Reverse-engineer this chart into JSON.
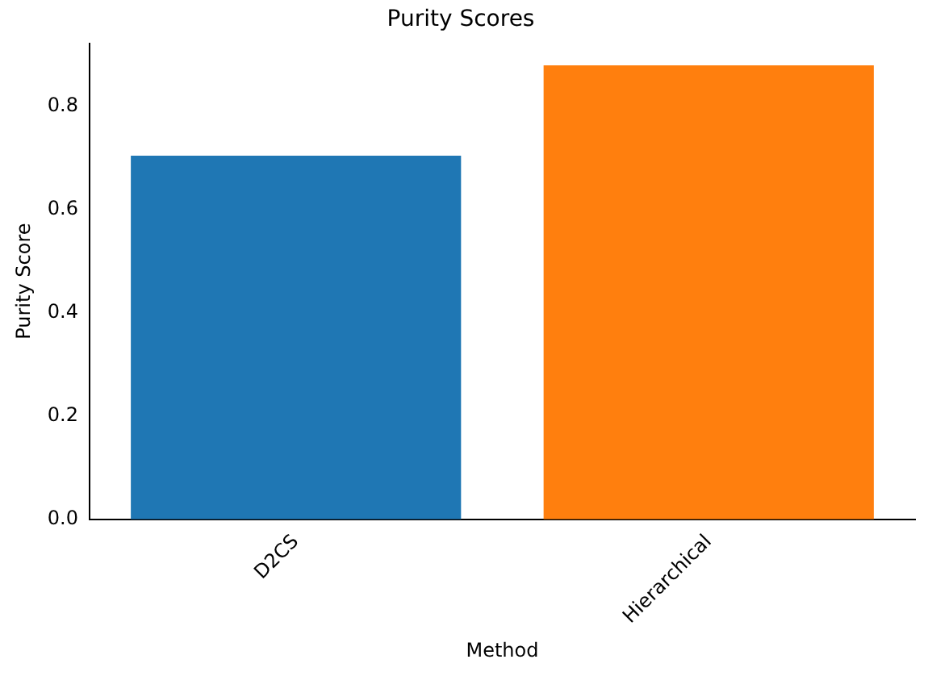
{
  "chart_data": {
    "type": "bar",
    "title": "Purity Scores",
    "xlabel": "Method",
    "ylabel": "Purity Score",
    "categories": [
      "D2CS",
      "Hierarchical"
    ],
    "values": [
      0.705,
      0.88
    ],
    "colors": [
      "#1f77b4",
      "#ff7f0e"
    ],
    "ylim": [
      0,
      0.923
    ],
    "yticks": [
      {
        "value": 0,
        "label": "0.0"
      },
      {
        "value": 0.2,
        "label": "0.2"
      },
      {
        "value": 0.4,
        "label": "0.4"
      },
      {
        "value": 0.6,
        "label": "0.6"
      },
      {
        "value": 0.8,
        "label": "0.8"
      }
    ],
    "grid": false,
    "legend": false
  }
}
